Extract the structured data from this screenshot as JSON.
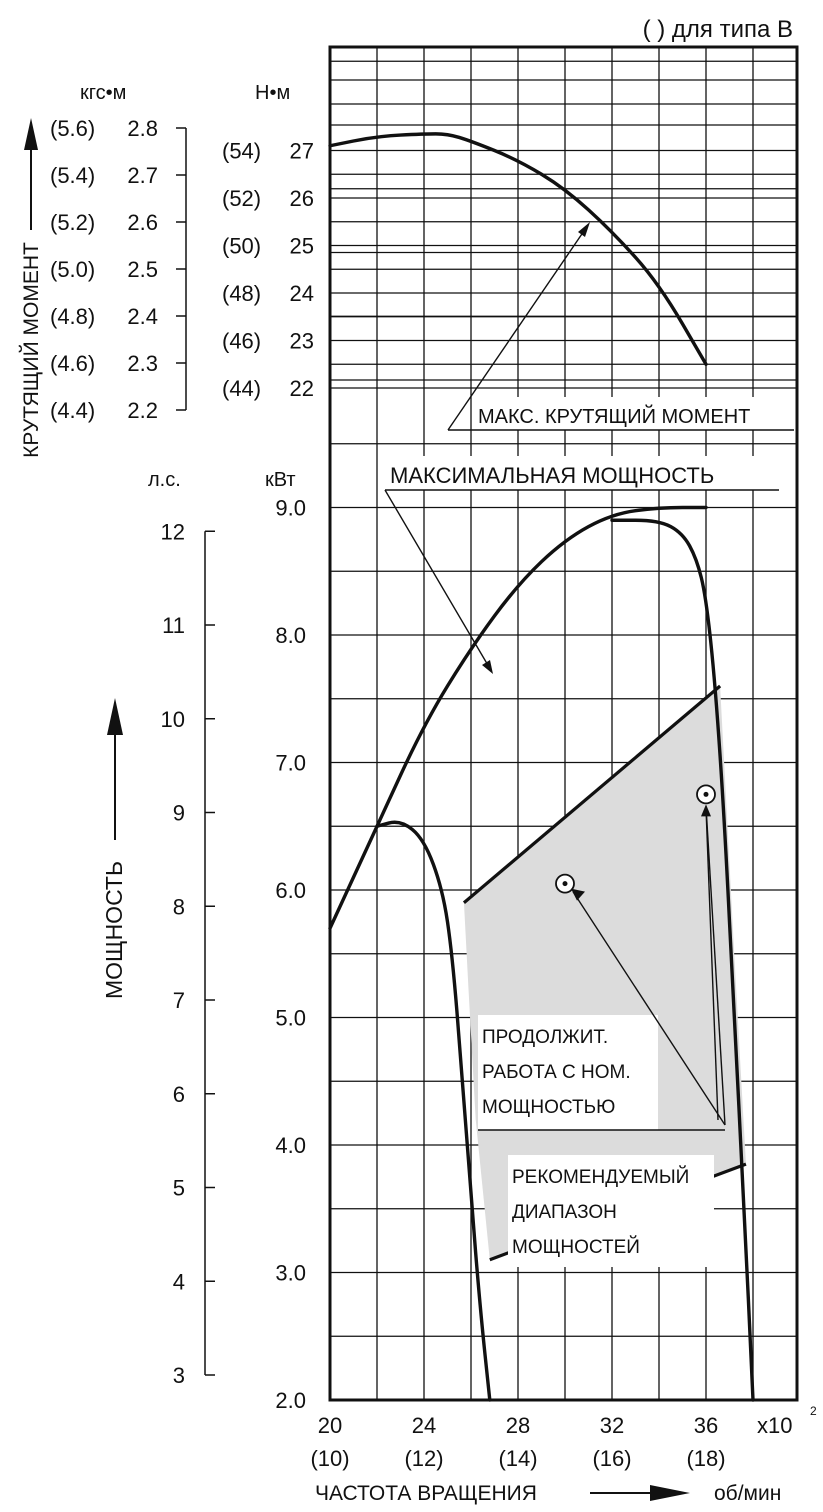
{
  "header_note": "( ) для типа B",
  "torque": {
    "title": "КРУТЯЩИЙ МОМЕНТ",
    "unit_kgf": "кгс•м",
    "unit_nm": "Н•м",
    "kgf_ticks": [
      {
        "v": 2.8,
        "label": "2.8",
        "alt": "(5.6)"
      },
      {
        "v": 2.7,
        "label": "2.7",
        "alt": "(5.4)"
      },
      {
        "v": 2.6,
        "label": "2.6",
        "alt": "(5.2)"
      },
      {
        "v": 2.5,
        "label": "2.5",
        "alt": "(5.0)"
      },
      {
        "v": 2.4,
        "label": "2.4",
        "alt": "(4.8)"
      },
      {
        "v": 2.3,
        "label": "2.3",
        "alt": "(4.6)"
      },
      {
        "v": 2.2,
        "label": "2.2",
        "alt": "(4.4)"
      }
    ],
    "nm_ticks": [
      {
        "v": 27,
        "label": "27",
        "alt": "(54)"
      },
      {
        "v": 26,
        "label": "26",
        "alt": "(52)"
      },
      {
        "v": 25,
        "label": "25",
        "alt": "(50)"
      },
      {
        "v": 24,
        "label": "24",
        "alt": "(48)"
      },
      {
        "v": 23,
        "label": "23",
        "alt": "(46)"
      },
      {
        "v": 22,
        "label": "22",
        "alt": "(44)"
      }
    ]
  },
  "power": {
    "title": "МОЩНОСТЬ",
    "unit_hp": "л.с.",
    "unit_kw": "кВт",
    "hp_ticks": [
      "12",
      "11",
      "10",
      "9",
      "8",
      "7",
      "6",
      "5",
      "4",
      "3"
    ],
    "kw_ticks": [
      "9.0",
      "8.0",
      "7.0",
      "6.0",
      "5.0",
      "4.0",
      "3.0",
      "2.0"
    ]
  },
  "x_axis": {
    "title": "ЧАСТОТА ВРАЩЕНИЯ",
    "unit": "об/мин",
    "multiplier": "x10",
    "multiplier_exp": "2",
    "ticks": [
      {
        "v": 20,
        "label": "20",
        "alt": "(10)"
      },
      {
        "v": 24,
        "label": "24",
        "alt": "(12)"
      },
      {
        "v": 28,
        "label": "28",
        "alt": "(14)"
      },
      {
        "v": 32,
        "label": "32",
        "alt": "(16)"
      },
      {
        "v": 36,
        "label": "36",
        "alt": "(18)"
      }
    ]
  },
  "annotations": {
    "max_torque": "МАКС. КРУТЯЩИЙ МОМЕНТ",
    "max_power": "МАКСИМАЛЬНАЯ МОЩНОСТЬ",
    "continuous": [
      "ПРОДОЛЖИТ.",
      "РАБОТА С НОМ.",
      "МОЩНОСТЬЮ"
    ],
    "recommended": [
      "РЕКОМЕНДУЕМЫЙ",
      "ДИАПАЗОН",
      "МОЩНОСТЕЙ"
    ]
  },
  "chart_data": {
    "type": "line",
    "x_unit": "x10^2 об/мин",
    "xlim": [
      20,
      38.5
    ],
    "series": [
      {
        "axis": "torque_nm",
        "points": [
          [
            20,
            27.1
          ],
          [
            22,
            27.3
          ],
          [
            24,
            27.35
          ],
          [
            25,
            27.35
          ],
          [
            26,
            27.2
          ],
          [
            28,
            26.8
          ],
          [
            30,
            26.2
          ],
          [
            32,
            25.3
          ],
          [
            34,
            24.2
          ],
          [
            36,
            22.5
          ]
        ]
      },
      {
        "axis": "power_kw",
        "points": [
          [
            20,
            5.7
          ],
          [
            22,
            6.5
          ],
          [
            24,
            7.3
          ],
          [
            26,
            7.9
          ],
          [
            28,
            8.4
          ],
          [
            30,
            8.75
          ],
          [
            32,
            8.95
          ],
          [
            34,
            9.0
          ],
          [
            36,
            9.0
          ]
        ]
      },
      {
        "axis": "power_kw",
        "points": [
          [
            22,
            6.5
          ],
          [
            23,
            6.55
          ],
          [
            24,
            6.4
          ],
          [
            24.8,
            6.0
          ],
          [
            25.2,
            5.5
          ],
          [
            25.6,
            4.6
          ],
          [
            26,
            3.6
          ],
          [
            26.4,
            2.7
          ],
          [
            26.8,
            2.0
          ]
        ]
      },
      {
        "axis": "power_kw",
        "points": [
          [
            32,
            8.9
          ],
          [
            34,
            8.9
          ],
          [
            35,
            8.8
          ],
          [
            35.6,
            8.6
          ],
          [
            36,
            8.3
          ],
          [
            36.4,
            7.6
          ],
          [
            36.8,
            6.5
          ],
          [
            37.2,
            5.0
          ],
          [
            37.6,
            3.6
          ],
          [
            38,
            2.0
          ]
        ]
      }
    ],
    "shaded_region": [
      [
        25.7,
        5.9
      ],
      [
        36.6,
        7.6
      ],
      [
        37.2,
        5.5
      ],
      [
        37.7,
        3.85
      ],
      [
        26.8,
        3.1
      ],
      [
        26.2,
        4.2
      ],
      [
        25.9,
        5.2
      ]
    ],
    "markers": [
      {
        "label": "continuous",
        "x": 30,
        "y": 6.05
      },
      {
        "label": "recommended",
        "x": 36,
        "y": 6.75
      }
    ],
    "ylim_power_kw": [
      2.0,
      9.0
    ],
    "ylim_torque_nm": [
      22,
      27
    ]
  }
}
